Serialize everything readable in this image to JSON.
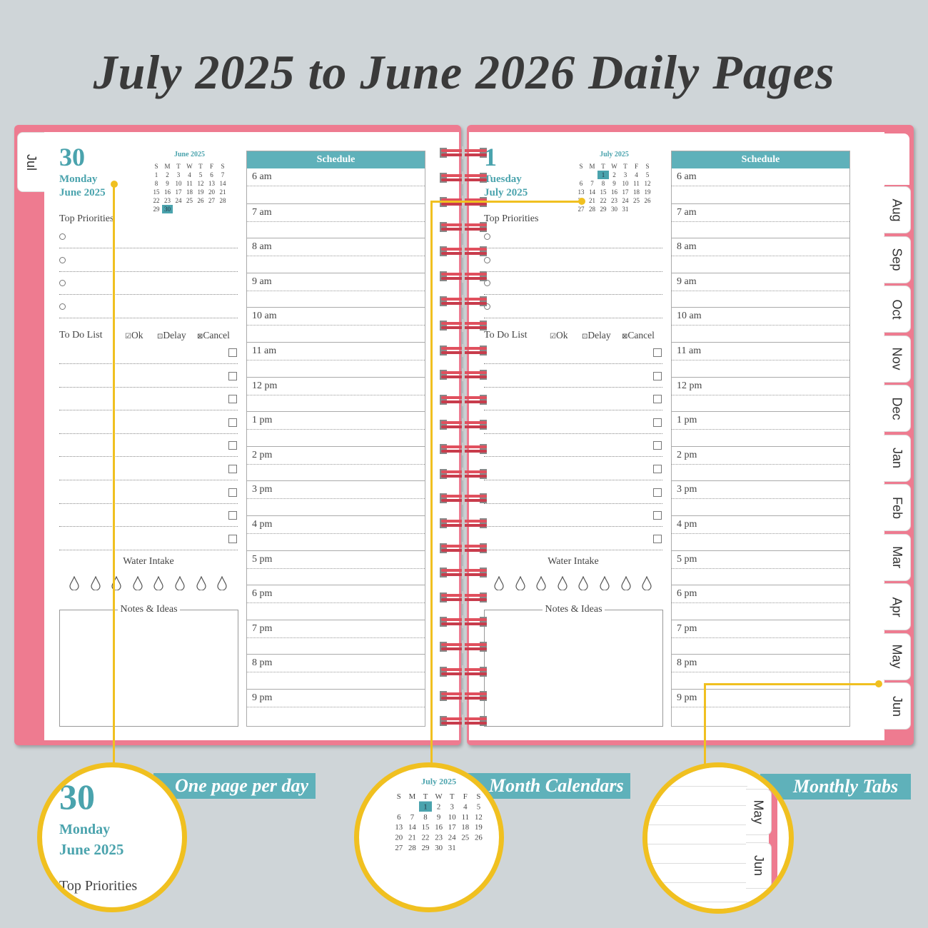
{
  "title": "July 2025 to June 2026 Daily Pages",
  "colors": {
    "cover": "#ee7b90",
    "accent": "#4aa3ad",
    "header": "#5fb1ba",
    "callout": "#f0c020"
  },
  "weekdays": [
    "S",
    "M",
    "T",
    "W",
    "T",
    "F",
    "S"
  ],
  "left_tab": "Jul",
  "right_tabs": [
    "Aug",
    "Sep",
    "Oct",
    "Nov",
    "Dec",
    "Jan",
    "Feb",
    "Mar",
    "Apr",
    "May",
    "Jun"
  ],
  "pages": [
    {
      "day": "30",
      "weekday": "Monday",
      "month_year": "June 2025",
      "mini_cal": {
        "title": "June 2025",
        "offset": 0,
        "days": 30,
        "highlight": 30
      }
    },
    {
      "day": "1",
      "weekday": "Tuesday",
      "month_year": "July 2025",
      "mini_cal": {
        "title": "July 2025",
        "offset": 2,
        "days": 31,
        "highlight": 1
      }
    }
  ],
  "labels": {
    "top_priorities": "Top Priorities",
    "todo": "To Do List",
    "ok": "Ok",
    "delay": "Delay",
    "cancel": "Cancel",
    "water": "Water Intake",
    "notes": "Notes & Ideas",
    "schedule": "Schedule"
  },
  "hours": [
    "6 am",
    "7 am",
    "8 am",
    "9 am",
    "10 am",
    "11 am",
    "12 pm",
    "1 pm",
    "2 pm",
    "3 pm",
    "4 pm",
    "5 pm",
    "6 pm",
    "7 pm",
    "8 pm",
    "9 pm"
  ],
  "callouts": {
    "page": {
      "banner": "One page per day",
      "day": "30",
      "weekday": "Monday",
      "month_year": "June 2025",
      "label": "Top Priorities"
    },
    "calendar": {
      "banner": "Month Calendars",
      "title": "July 2025"
    },
    "tabs": {
      "banner": "Monthly Tabs",
      "tabs": [
        "May",
        "Jun"
      ]
    }
  }
}
